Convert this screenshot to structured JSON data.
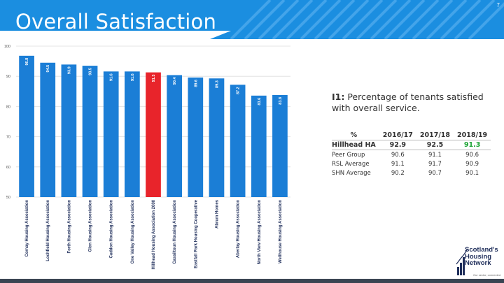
{
  "page": {
    "title": "Overall Satisfaction",
    "page_number": "7"
  },
  "indicator": {
    "code": "I1:",
    "text": "Percentage of tenants satisfied with overall service."
  },
  "table": {
    "headers": [
      "%",
      "2016/17",
      "2017/18",
      "2018/19"
    ],
    "rows": [
      {
        "label": "Hillhead HA",
        "values": [
          "92.9",
          "92.5",
          "91.3"
        ]
      },
      {
        "label": "Peer Group",
        "values": [
          "90.6",
          "91.1",
          "90.6"
        ]
      },
      {
        "label": "RSL Average",
        "values": [
          "91.1",
          "91.7",
          "90.9"
        ]
      },
      {
        "label": "SHN Average",
        "values": [
          "90.2",
          "90.7",
          "90.1"
        ]
      }
    ]
  },
  "logo": {
    "lines": [
      "Scotland's",
      "Housing",
      "Network"
    ],
    "tagline": "Our sector, connected"
  },
  "colors": {
    "banner": "#1b8ee0",
    "bar": "#1b7ed6",
    "highlight": "#e8242b",
    "highlight_text": "#1aa332"
  },
  "chart_data": {
    "type": "bar",
    "categories": [
      "Cernay Housing Association",
      "Lochfield Housing Association",
      "Forth Housing Association",
      "Glen Housing Association",
      "Caddon Housing Association",
      "One Valley Housing Association",
      "Hillhead Housing Association 2000",
      "Cassiltoun Housing Association",
      "Eastfall Park Housing Cooperative",
      "Abrum Homes",
      "Aberlay Housing Association",
      "North View Housing Association",
      "Wellhouse Housing Association"
    ],
    "values": [
      96.8,
      94.5,
      93.9,
      93.5,
      91.6,
      91.6,
      91.3,
      90.4,
      89.6,
      89.3,
      87.2,
      83.6,
      83.8
    ],
    "highlight_index": 6,
    "ylim": [
      50,
      100
    ],
    "yticks": [
      50,
      60,
      70,
      80,
      90,
      100
    ],
    "grid": true
  }
}
